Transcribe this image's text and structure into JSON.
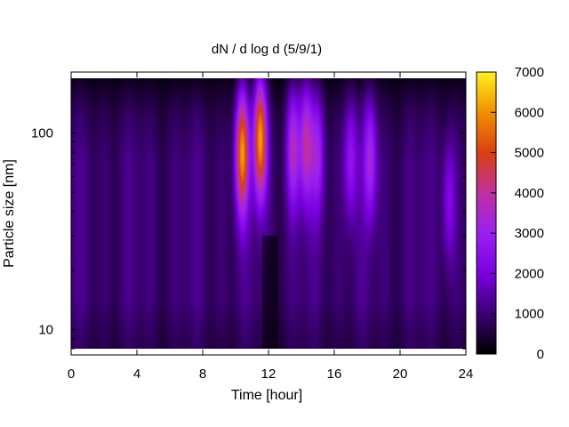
{
  "chart_data": {
    "type": "heatmap",
    "title": "dN / d log d (5/9/1)",
    "xlabel": "Time [hour]",
    "ylabel": "Particle size [nm]",
    "x_range": [
      0,
      24
    ],
    "y_range": [
      8,
      190
    ],
    "y_scale": "log",
    "x_ticks": [
      "0",
      "4",
      "8",
      "12",
      "16",
      "20",
      "24"
    ],
    "y_ticks": [
      "10",
      "100"
    ],
    "colorbar": {
      "range": [
        0,
        7000
      ],
      "ticks": [
        "0",
        "1000",
        "2000",
        "3000",
        "4000",
        "5000",
        "6000",
        "7000"
      ],
      "palette": [
        "#000000",
        "#3a0070",
        "#7a00e0",
        "#9a20f0",
        "#c030a0",
        "#d84010",
        "#f09000",
        "#fff020"
      ]
    },
    "background_level": 1200,
    "features": [
      {
        "time_hour": 10.4,
        "size_nm": 80,
        "peak_value": 6200
      },
      {
        "time_hour": 11.5,
        "size_nm": 95,
        "peak_value": 6500
      },
      {
        "time_hour": 13.5,
        "size_nm": 85,
        "peak_value": 3800
      },
      {
        "time_hour": 14.3,
        "size_nm": 90,
        "peak_value": 4200
      },
      {
        "time_hour": 15.0,
        "size_nm": 80,
        "peak_value": 3200
      },
      {
        "time_hour": 17.0,
        "size_nm": 75,
        "peak_value": 3000
      },
      {
        "time_hour": 18.2,
        "size_nm": 75,
        "peak_value": 3500
      },
      {
        "time_hour": 23.0,
        "size_nm": 45,
        "peak_value": 2600
      }
    ]
  }
}
